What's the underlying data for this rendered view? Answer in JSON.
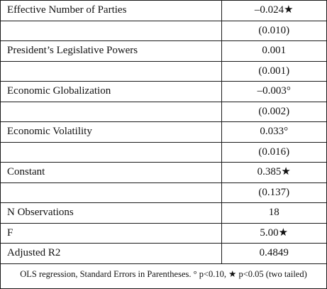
{
  "rows": [
    {
      "label": "Effective Number of Parties",
      "value": "–0.024★"
    },
    {
      "label": "",
      "value": "(0.010)"
    },
    {
      "label": "President’s Legislative Powers",
      "value": "0.001"
    },
    {
      "label": "",
      "value": "(0.001)"
    },
    {
      "label": "Economic Globalization",
      "value": "–0.003°"
    },
    {
      "label": "",
      "value": "(0.002)"
    },
    {
      "label": "Economic Volatility",
      "value": "0.033°"
    },
    {
      "label": "",
      "value": "(0.016)"
    },
    {
      "label": "Constant",
      "value": "0.385★"
    },
    {
      "label": "",
      "value": "(0.137)"
    },
    {
      "label": "N Observations",
      "value": "18"
    },
    {
      "label": "F",
      "value": "5.00★"
    },
    {
      "label": "Adjusted R2",
      "value": "0.4849"
    }
  ],
  "note": "OLS regression, Standard Errors in Parentheses. ° p<0.10, ★ p<0.05 (two tailed)"
}
